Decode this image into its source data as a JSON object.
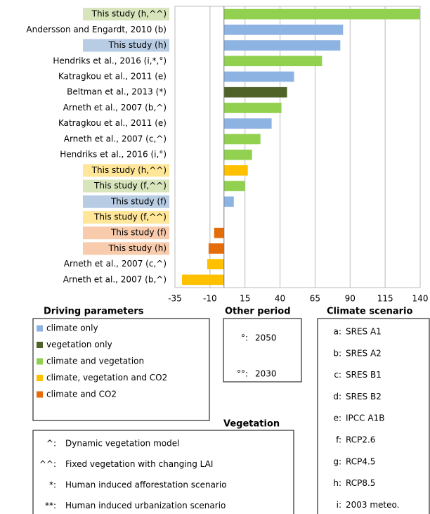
{
  "chart_data": {
    "type": "hbar",
    "categories": [
      "This study (h,^^)",
      "Andersson and Engardt, 2010 (b)",
      "This study (h)",
      "Hendriks et al., 2016 (i,*,°)",
      "Katragkou et al., 2011 (e)",
      "Beltman et al., 2013 (*)",
      "Arneth et al., 2007 (b,^)",
      "Katragkou et al., 2011 (e)",
      "Arneth et al., 2007 (c,^)",
      "Hendriks et al., 2016 (i,°)",
      "This study (h,^^)",
      "This study (f,^^)",
      "This study (f)",
      "This study (f,^^)",
      "This study (f)",
      "This study (h)",
      "Arneth et al., 2007 (c,^)",
      "Arneth et al., 2007 (b,^)"
    ],
    "values": [
      140,
      85,
      83,
      70,
      50,
      45,
      41,
      34,
      26,
      20,
      17,
      15,
      7,
      0,
      -7,
      -11,
      -12,
      -30
    ],
    "colors": [
      "#92d050",
      "#8db3e2",
      "#8db3e2",
      "#92d050",
      "#8db3e2",
      "#4f6228",
      "#92d050",
      "#8db3e2",
      "#92d050",
      "#92d050",
      "#ffc000",
      "#92d050",
      "#8db3e2",
      "#ffc000",
      "#e46c0a",
      "#e46c0a",
      "#ffc000",
      "#ffc000"
    ],
    "label_highlights": [
      "#d7e4bc",
      null,
      "#b8cce4",
      null,
      null,
      null,
      null,
      null,
      null,
      null,
      "#ffe699",
      "#d7e4bc",
      "#b8cce4",
      "#ffe699",
      "#f8cbad",
      "#f8cbad",
      null,
      null
    ],
    "xlim": [
      -35,
      140
    ],
    "xticks": [
      -35,
      -10,
      15,
      40,
      65,
      90,
      115,
      140
    ],
    "grid": true
  },
  "legends": {
    "driving": {
      "title": "Driving parameters",
      "items": [
        {
          "label": "climate  only",
          "color": "#8db3e2"
        },
        {
          "label": "vegetation only",
          "color": "#4f6228"
        },
        {
          "label": "climate and vegetation",
          "color": "#92d050"
        },
        {
          "label": "climate, vegetation and CO2",
          "color": "#ffc000"
        },
        {
          "label": "climate and CO2",
          "color": "#e46c0a"
        }
      ]
    },
    "period": {
      "title": "Other period",
      "items": [
        {
          "key": "°:",
          "label": "2050"
        },
        {
          "key": "°°:",
          "label": "2030"
        }
      ]
    },
    "scenario": {
      "title": "Climate scenario",
      "items": [
        {
          "key": "a:",
          "label": "SRES A1"
        },
        {
          "key": "b:",
          "label": "SRES A2"
        },
        {
          "key": "c:",
          "label": "SRES B1"
        },
        {
          "key": "d:",
          "label": "SRES B2"
        },
        {
          "key": "e:",
          "label": "IPCC A1B"
        },
        {
          "key": "f:",
          "label": "RCP2.6"
        },
        {
          "key": "g:",
          "label": "RCP4.5"
        },
        {
          "key": "h:",
          "label": "RCP8.5"
        },
        {
          "key": "i:",
          "label": "2003 meteo."
        }
      ]
    },
    "vegetation": {
      "title": "Vegetation",
      "items": [
        {
          "key": "^:",
          "label": "Dynamic vegetation model"
        },
        {
          "key": "^^:",
          "label": "Fixed vegetation with changing LAI"
        },
        {
          "key": "*:",
          "label": "Human induced afforestation scenario"
        },
        {
          "key": "**:",
          "label": "Human induced urbanization scenario"
        }
      ]
    }
  }
}
